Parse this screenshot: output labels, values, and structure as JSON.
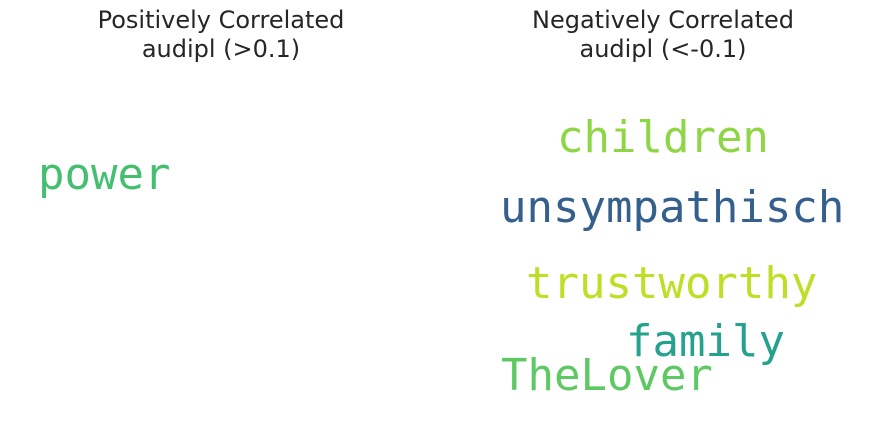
{
  "chart_data": [
    {
      "type": "wordcloud",
      "title_lines": [
        "Positively Correlated",
        "audipl (>0.1)"
      ],
      "words": [
        {
          "text": "power",
          "color": "#44bf70"
        }
      ]
    },
    {
      "type": "wordcloud",
      "title_lines": [
        "Negatively Correlated",
        "audipl (<-0.1)"
      ],
      "words": [
        {
          "text": "children",
          "color": "#8ed645"
        },
        {
          "text": "unsympathisch",
          "color": "#355f8d"
        },
        {
          "text": "trustworthy",
          "color": "#bddf26"
        },
        {
          "text": "family",
          "color": "#25a18e"
        },
        {
          "text": "TheLover",
          "color": "#5ec962"
        }
      ]
    }
  ]
}
